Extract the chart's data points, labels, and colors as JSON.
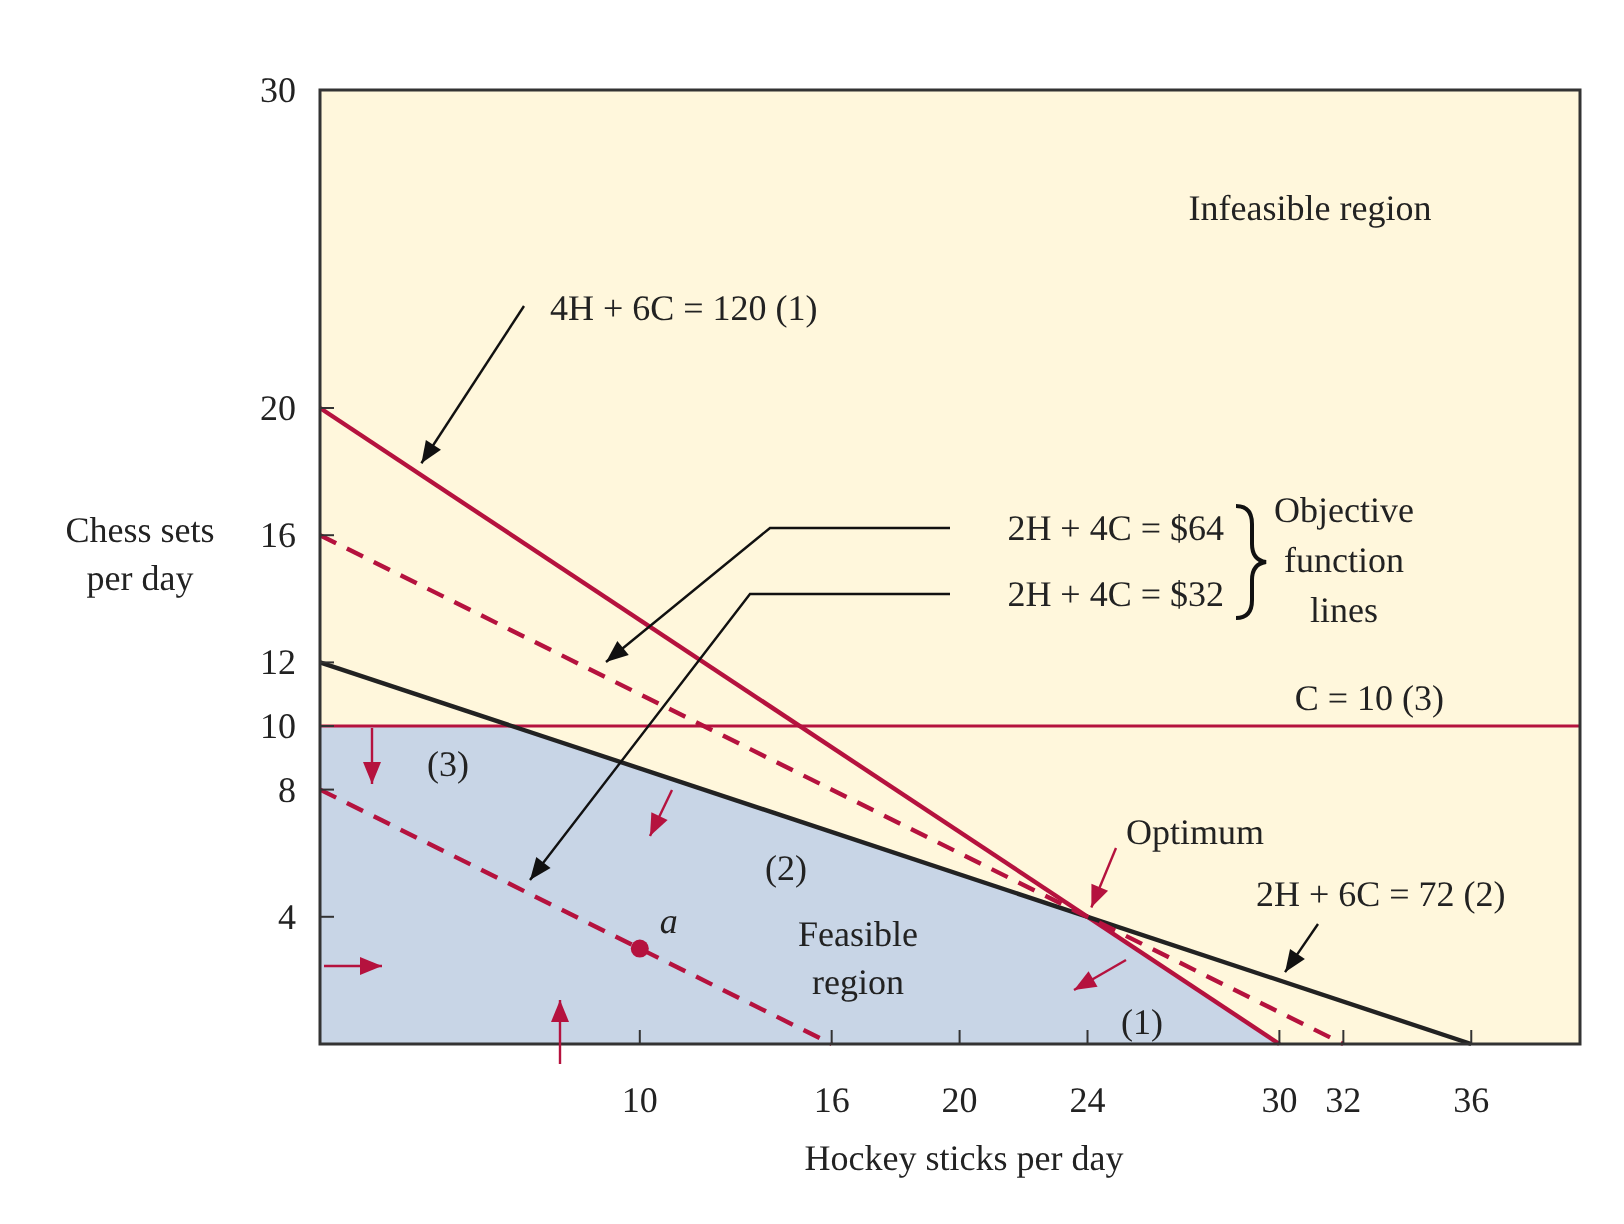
{
  "chart_data": {
    "type": "line",
    "xlabel": "Hockey sticks per day",
    "ylabel": "Chess sets per day",
    "xlim": [
      0,
      39.4
    ],
    "ylim": [
      0,
      30
    ],
    "xticks": [
      10,
      16,
      20,
      24,
      30,
      32,
      36
    ],
    "yticks": [
      4,
      8,
      10,
      12,
      16,
      20,
      30
    ],
    "grid": false,
    "legend": false,
    "series": [
      {
        "type": "area",
        "color": "#c8d5e6",
        "x": [
          0,
          6,
          24,
          30
        ],
        "values": [
          10,
          10,
          4,
          0
        ]
      },
      {
        "color": "#b5123e",
        "x": [
          0,
          30
        ],
        "values": [
          20,
          0
        ],
        "line_style": "solid"
      },
      {
        "color": "#222222",
        "x": [
          0,
          36
        ],
        "values": [
          12,
          0
        ],
        "line_style": "solid"
      },
      {
        "color": "#b5123e",
        "x": [
          0,
          32
        ],
        "values": [
          16,
          0
        ],
        "line_style": "dashed"
      },
      {
        "color": "#b5123e",
        "x": [
          0,
          16
        ],
        "values": [
          8,
          0
        ],
        "line_style": "dashed"
      },
      {
        "type": "scatter",
        "name": "a",
        "color": "#b5123e",
        "x": [
          10
        ],
        "values": [
          3
        ],
        "marker": "circle"
      }
    ],
    "ref_lines": [
      {
        "axis": "y",
        "value": 10,
        "label": "C = 10 (3)",
        "color": "#b5123e"
      }
    ],
    "annotations": [
      "Infeasible region",
      {
        "text": "4H + 6C = 120 (1)",
        "x": 3,
        "y": 18
      },
      "2H + 4C = $64",
      "2H + 4C = $32",
      "Objective function lines",
      {
        "text": "Optimum",
        "x": 24,
        "y": 4
      },
      {
        "text": "2H + 6C = 72 (2)",
        "x": 30,
        "y": 2
      },
      "Feasible region",
      "(1)",
      "(2)",
      "(3)"
    ]
  }
}
